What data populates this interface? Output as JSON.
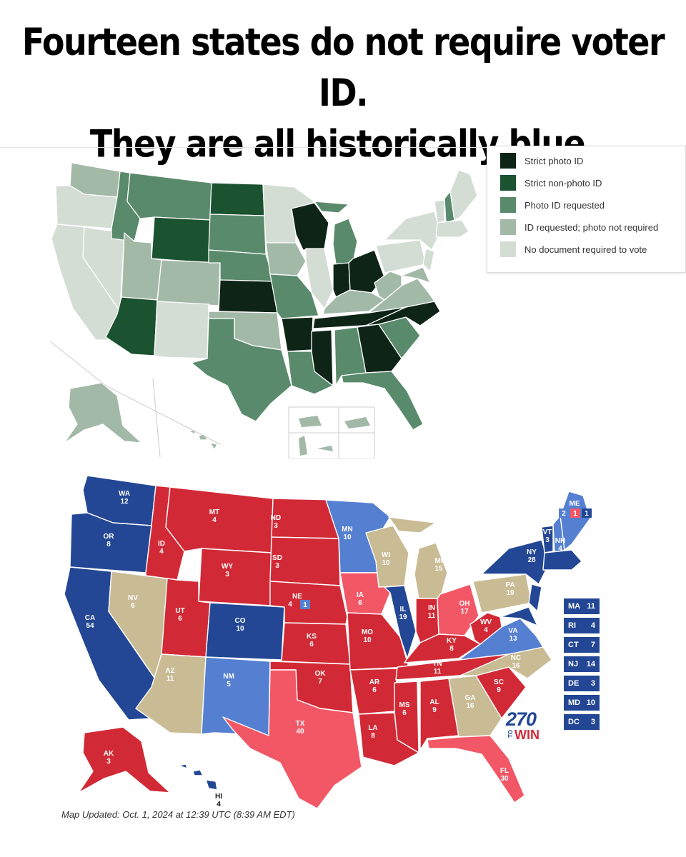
{
  "headline": {
    "line1": "Fourteen states do not require voter ID.",
    "line2": "They are all historically blue."
  },
  "legend": {
    "items": [
      {
        "label": "Strict photo ID",
        "color": "#0e2416"
      },
      {
        "label": "Strict non-photo ID",
        "color": "#1b5230"
      },
      {
        "label": "Photo ID requested",
        "color": "#5a8a6c"
      },
      {
        "label": "ID requested; photo not required",
        "color": "#a3b9a7"
      },
      {
        "label": "No document required to vote",
        "color": "#d3ddd4"
      }
    ]
  },
  "electoral_map": {
    "colors": {
      "safe_dem": "#234794",
      "lean_dem": "#557fd1",
      "safe_rep": "#d12a36",
      "lean_rep": "#f25766",
      "tossup": "#c9bb94"
    },
    "states": [
      {
        "abbr": "WA",
        "votes": "12"
      },
      {
        "abbr": "OR",
        "votes": "8"
      },
      {
        "abbr": "CA",
        "votes": "54"
      },
      {
        "abbr": "NV",
        "votes": "6"
      },
      {
        "abbr": "ID",
        "votes": "4"
      },
      {
        "abbr": "MT",
        "votes": "4"
      },
      {
        "abbr": "WY",
        "votes": "3"
      },
      {
        "abbr": "UT",
        "votes": "6"
      },
      {
        "abbr": "AZ",
        "votes": "11"
      },
      {
        "abbr": "CO",
        "votes": "10"
      },
      {
        "abbr": "NM",
        "votes": "5"
      },
      {
        "abbr": "ND",
        "votes": "3"
      },
      {
        "abbr": "SD",
        "votes": "3"
      },
      {
        "abbr": "NE",
        "votes": "4"
      },
      {
        "abbr": "KS",
        "votes": "6"
      },
      {
        "abbr": "OK",
        "votes": "7"
      },
      {
        "abbr": "TX",
        "votes": "40"
      },
      {
        "abbr": "MN",
        "votes": "10"
      },
      {
        "abbr": "IA",
        "votes": "6"
      },
      {
        "abbr": "MO",
        "votes": "10"
      },
      {
        "abbr": "AR",
        "votes": "6"
      },
      {
        "abbr": "LA",
        "votes": "8"
      },
      {
        "abbr": "WI",
        "votes": "10"
      },
      {
        "abbr": "IL",
        "votes": "19"
      },
      {
        "abbr": "MI",
        "votes": "15"
      },
      {
        "abbr": "IN",
        "votes": "11"
      },
      {
        "abbr": "OH",
        "votes": "17"
      },
      {
        "abbr": "KY",
        "votes": "8"
      },
      {
        "abbr": "TN",
        "votes": "11"
      },
      {
        "abbr": "MS",
        "votes": "6"
      },
      {
        "abbr": "AL",
        "votes": "9"
      },
      {
        "abbr": "GA",
        "votes": "16"
      },
      {
        "abbr": "FL",
        "votes": "30"
      },
      {
        "abbr": "SC",
        "votes": "9"
      },
      {
        "abbr": "NC",
        "votes": "16"
      },
      {
        "abbr": "VA",
        "votes": "13"
      },
      {
        "abbr": "WV",
        "votes": "4"
      },
      {
        "abbr": "PA",
        "votes": "19"
      },
      {
        "abbr": "NY",
        "votes": "28"
      },
      {
        "abbr": "VT",
        "votes": "3"
      },
      {
        "abbr": "NH",
        "votes": "4"
      },
      {
        "abbr": "ME",
        "votes": ""
      },
      {
        "abbr": "AK",
        "votes": "3"
      },
      {
        "abbr": "HI",
        "votes": "4"
      }
    ],
    "ne_district": "1",
    "me_districts": [
      "2",
      "1",
      "1"
    ],
    "small_states": [
      {
        "abbr": "MA",
        "votes": "11"
      },
      {
        "abbr": "RI",
        "votes": "4"
      },
      {
        "abbr": "CT",
        "votes": "7"
      },
      {
        "abbr": "NJ",
        "votes": "14"
      },
      {
        "abbr": "DE",
        "votes": "3"
      },
      {
        "abbr": "MD",
        "votes": "10"
      },
      {
        "abbr": "DC",
        "votes": "3"
      }
    ],
    "logo_number": "270",
    "logo_to": "TO",
    "logo_win": "WIN",
    "updated": "Map Updated: Oct. 1, 2024 at 12:39 UTC (8:39 AM EDT)"
  }
}
